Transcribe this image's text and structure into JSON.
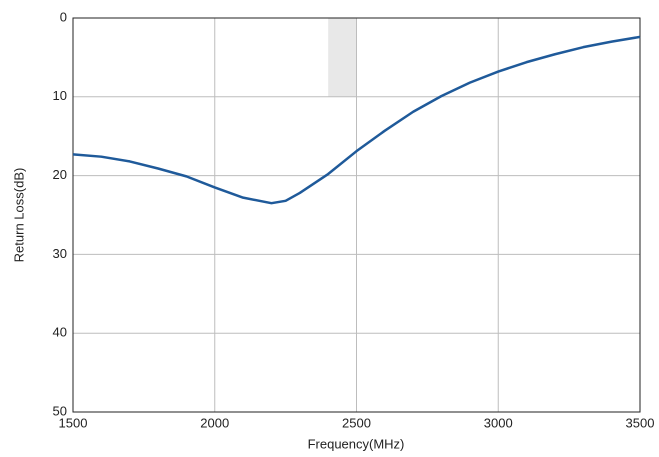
{
  "chart_data": {
    "type": "line",
    "x_label": "Frequency(MHz)",
    "y_label": "Return Loss(dB)",
    "x": [
      1500,
      1600,
      1700,
      1800,
      1900,
      2000,
      2100,
      2200,
      2250,
      2300,
      2400,
      2500,
      2600,
      2700,
      2800,
      2900,
      3000,
      3100,
      3200,
      3300,
      3400,
      3500
    ],
    "series": [
      {
        "name": "Return Loss",
        "color": "#1f5a9a",
        "values": [
          17.3,
          17.6,
          18.2,
          19.1,
          20.1,
          21.5,
          22.8,
          23.5,
          23.2,
          22.2,
          19.8,
          16.9,
          14.3,
          11.9,
          9.9,
          8.2,
          6.8,
          5.6,
          4.6,
          3.7,
          3.0,
          2.4
        ]
      }
    ],
    "band": {
      "x": [
        2400,
        2500
      ],
      "y": [
        0,
        10
      ],
      "color": "#e8e8e8"
    },
    "xlim": [
      1500,
      3500
    ],
    "xticks": [
      1500,
      2000,
      2500,
      3000,
      3500
    ],
    "ylim": [
      0,
      50
    ],
    "yticks": [
      0,
      10,
      20,
      30,
      40,
      50
    ],
    "y_inverted": true,
    "grid": true
  }
}
